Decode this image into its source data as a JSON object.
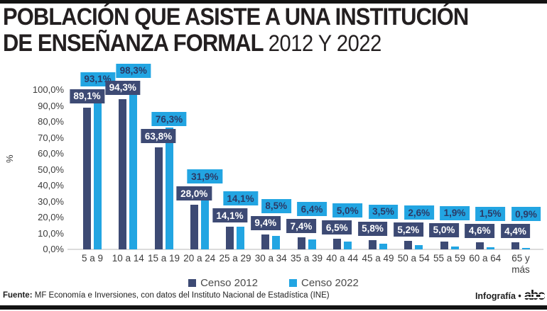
{
  "header": {
    "title_line1": "POBLACIÓN QUE ASISTE A UNA INSTITUCIÓN",
    "title_line2": "DE ENSEÑANZA FORMAL",
    "subtitle": "2012 Y 2022"
  },
  "footer": {
    "source_label": "Fuente:",
    "source_text": "MF Economía e Inversiones, con datos del Instituto Nacional de Estadística (INE)",
    "credit": "Infografía •",
    "logo": "abc"
  },
  "colors": {
    "censo2012": "#3d4a74",
    "censo2022": "#22a5e2",
    "label_text_on_dark": "#ffffff",
    "label_text_on_light": "#2b3a66",
    "axis_line": "#dcdcdc",
    "tick_text": "#3c3c3c",
    "border_bars": "#131313"
  },
  "chart_data": {
    "type": "bar",
    "title": "POBLACIÓN QUE ASISTE A UNA INSTITUCIÓN DE ENSEÑANZA FORMAL",
    "subtitle": "2012 Y 2022",
    "xlabel": "",
    "ylabel": "%",
    "ylim": [
      0,
      100
    ],
    "ytick_step": 10,
    "ytick_labels": [
      "100,0%",
      "90,0%",
      "80,0%",
      "70,0%",
      "60,0%",
      "50,0%",
      "40,0%",
      "30,0%",
      "20,0%",
      "10,0%",
      "0,0%"
    ],
    "grid": false,
    "legend_position": "bottom",
    "categories": [
      "5 a 9",
      "10 a 14",
      "15 a 19",
      "20 a 24",
      "25 a 29",
      "30 a 34",
      "35 a 39",
      "40 a 44",
      "45 a 49",
      "50 a 54",
      "55 a 59",
      "60 a 64",
      "65 y más"
    ],
    "series": [
      {
        "name": "Censo 2012",
        "color": "#3d4a74",
        "values": [
          89.1,
          94.3,
          63.8,
          28.0,
          14.1,
          9.4,
          7.4,
          6.5,
          5.8,
          5.2,
          5.0,
          4.6,
          4.4
        ],
        "labels": [
          "89,1%",
          "94,3%",
          "63,8%",
          "28,0%",
          "14,1%",
          "9,4%",
          "7,4%",
          "6,5%",
          "5,8%",
          "5,2%",
          "5,0%",
          "4,6%",
          "4,4%"
        ]
      },
      {
        "name": "Censo 2022",
        "color": "#22a5e2",
        "values": [
          93.1,
          98.3,
          76.3,
          31.9,
          14.1,
          8.5,
          6.4,
          5.0,
          3.5,
          2.6,
          1.9,
          1.5,
          0.9
        ],
        "labels": [
          "93,1%",
          "98,3%",
          "76,3%",
          "31,9%",
          "14,1%",
          "8,5%",
          "6,4%",
          "5,0%",
          "3,5%",
          "2,6%",
          "1,9%",
          "1,5%",
          "0,9%"
        ]
      }
    ]
  }
}
